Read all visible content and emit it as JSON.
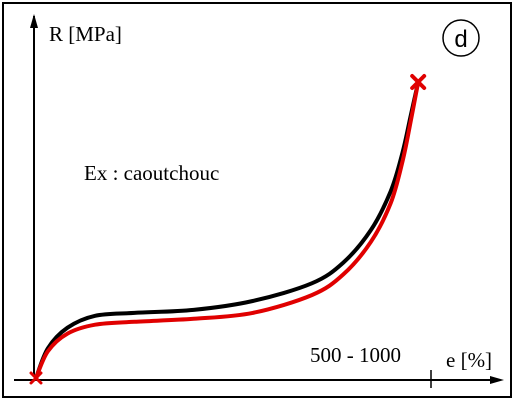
{
  "chart_data": {
    "type": "line",
    "panel_label": "d",
    "annotation": "Ex : caoutchouc",
    "ylabel": "R [MPa]",
    "xlabel": "e [%]",
    "x_tick_label": "500 - 1000",
    "grid": false,
    "legend": "none",
    "colors": {
      "loading": "#000000",
      "unloading": "#e00000",
      "rupture_marker": "#e00000",
      "axes": "#000000"
    },
    "series": [
      {
        "values_normalized": [
          [
            0,
            0
          ],
          [
            0.03,
            0.1
          ],
          [
            0.08,
            0.17
          ],
          [
            0.15,
            0.21
          ],
          [
            0.25,
            0.22
          ],
          [
            0.4,
            0.23
          ],
          [
            0.55,
            0.26
          ],
          [
            0.7,
            0.32
          ],
          [
            0.78,
            0.39
          ],
          [
            0.85,
            0.5
          ],
          [
            0.9,
            0.63
          ],
          [
            0.93,
            0.76
          ],
          [
            0.95,
            0.88
          ],
          [
            0.97,
            1.0
          ]
        ]
      },
      {
        "values_normalized": [
          [
            0,
            0
          ],
          [
            0.03,
            0.09
          ],
          [
            0.08,
            0.15
          ],
          [
            0.15,
            0.18
          ],
          [
            0.25,
            0.19
          ],
          [
            0.4,
            0.2
          ],
          [
            0.55,
            0.22
          ],
          [
            0.7,
            0.28
          ],
          [
            0.78,
            0.35
          ],
          [
            0.85,
            0.46
          ],
          [
            0.9,
            0.59
          ],
          [
            0.93,
            0.73
          ],
          [
            0.95,
            0.86
          ],
          [
            0.97,
            1.0
          ]
        ]
      }
    ],
    "rupture_point_normalized": [
      0.97,
      1.0
    ]
  }
}
